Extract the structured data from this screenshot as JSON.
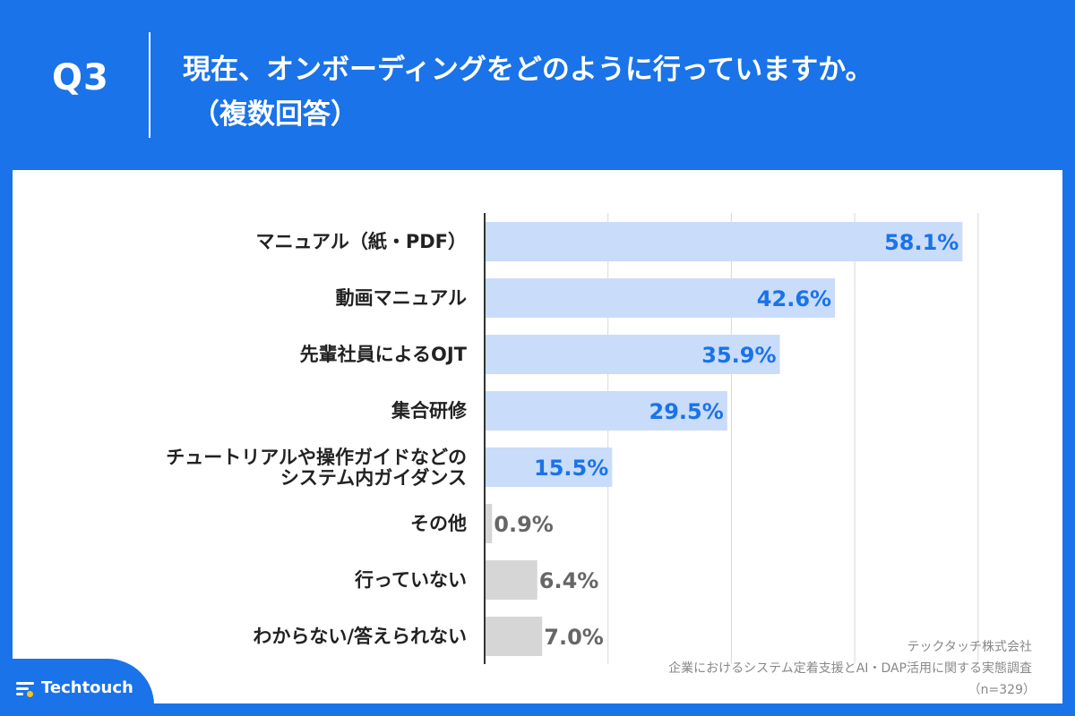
{
  "header": {
    "question_number": "Q3",
    "title_line1": "現在、オンボーディングをどのように行っていますか。",
    "title_line2": "（複数回答）"
  },
  "chart_data": {
    "type": "bar",
    "orientation": "horizontal",
    "categories": [
      [
        "マニュアル（紙・PDF）"
      ],
      [
        "動画マニュアル"
      ],
      [
        "先輩社員によるOJT"
      ],
      [
        "集合研修"
      ],
      [
        "チュートリアルや操作ガイドなどの",
        "システム内ガイダンス"
      ],
      [
        "その他"
      ],
      [
        "行っていない"
      ],
      [
        "わからない/答えられない"
      ]
    ],
    "values": [
      58.1,
      42.6,
      35.9,
      29.5,
      15.5,
      0.9,
      6.4,
      7.0
    ],
    "value_labels": [
      "58.1%",
      "42.6%",
      "35.9%",
      "29.5%",
      "15.5%",
      "0.9%",
      "6.4%",
      "7.0%"
    ],
    "bar_colors": [
      "#c9dcfa",
      "#c9dcfa",
      "#c9dcfa",
      "#c9dcfa",
      "#c9dcfa",
      "#d6d6d6",
      "#d6d6d6",
      "#d6d6d6"
    ],
    "label_colors": [
      "#1a73e8",
      "#1a73e8",
      "#1a73e8",
      "#1a73e8",
      "#1a73e8",
      "#666666",
      "#666666",
      "#666666"
    ],
    "xlim": [
      0,
      60
    ],
    "grid": true,
    "grid_color": "#d9d9d9",
    "axis_color": "#333333"
  },
  "source": {
    "company": "テックタッチ株式会社",
    "survey": "企業におけるシステム定着支援とAI・DAP活用に関する実態調査",
    "sample": "（n=329）"
  },
  "brand": {
    "name": "Techtouch",
    "accent": "#1a73e8"
  }
}
